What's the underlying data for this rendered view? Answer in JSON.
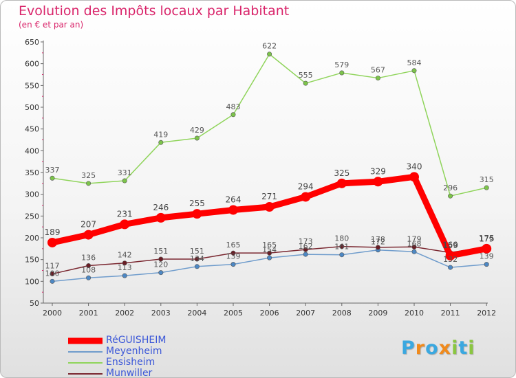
{
  "chart_data": {
    "type": "line",
    "title": "Evolution des Impôts locaux par Habitant",
    "subtitle": "(en € et par an)",
    "x": [
      "2000",
      "2001",
      "2002",
      "2003",
      "2004",
      "2005",
      "2006",
      "2007",
      "2008",
      "2009",
      "2010",
      "2011",
      "2012"
    ],
    "ylim": [
      50,
      650
    ],
    "yticks": [
      "50",
      "100",
      "150",
      "200",
      "250",
      "300",
      "350",
      "400",
      "450",
      "500",
      "550",
      "600",
      "650"
    ],
    "grid": "none",
    "legend_position": "bottom-left",
    "series": [
      {
        "name": "Ensisheim",
        "color": "#8fd45a",
        "point_color": "#7cc44a",
        "values": [
          337,
          325,
          331,
          419,
          429,
          483,
          622,
          555,
          579,
          567,
          584,
          296,
          315
        ],
        "labels": [
          "337",
          "325",
          "331",
          "419",
          "429",
          "483",
          "622",
          "555",
          "579",
          "567",
          "584",
          "296",
          "315"
        ]
      },
      {
        "name": "Meyenheim",
        "color": "#6f9ccc",
        "point_color": "#4d88c4",
        "values": [
          100,
          108,
          113,
          120,
          134,
          139,
          154,
          162,
          161,
          172,
          168,
          132,
          139
        ],
        "labels": [
          "100",
          "108",
          "113",
          "120",
          "134",
          "139",
          "154",
          "162",
          "161",
          "172",
          "168",
          "132",
          "139"
        ]
      },
      {
        "name": "Munwiller",
        "color": "#7a2730",
        "point_color": "#6a1d25",
        "values": [
          117,
          136,
          142,
          151,
          151,
          165,
          165,
          173,
          180,
          178,
          179,
          166,
          179
        ],
        "labels": [
          "117",
          "136",
          "142",
          "151",
          "151",
          "165",
          "165",
          "173",
          "180",
          "178",
          "179",
          "166",
          "179"
        ]
      },
      {
        "name": "RéGUISHEIM",
        "color": "#ff0000",
        "point_color": "#ff0000",
        "values": [
          189,
          207,
          231,
          246,
          255,
          264,
          271,
          294,
          325,
          329,
          340,
          159,
          175
        ],
        "labels": [
          "189",
          "207",
          "231",
          "246",
          "255",
          "264",
          "271",
          "294",
          "325",
          "329",
          "340",
          "159",
          "175"
        ]
      }
    ]
  },
  "legend": {
    "items": [
      {
        "name": "RéGUISHEIM",
        "color": "#ff0000"
      },
      {
        "name": "Meyenheim",
        "color": "#6f9ccc"
      },
      {
        "name": "Ensisheim",
        "color": "#8fd45a"
      },
      {
        "name": "Munwiller",
        "color": "#7a2730"
      }
    ]
  },
  "logo": {
    "text": "Proxiti",
    "letters": [
      {
        "ch": "P",
        "color": "#3aa8e0"
      },
      {
        "ch": "r",
        "color": "#f08a1c"
      },
      {
        "ch": "o",
        "color": "#3aa8e0"
      },
      {
        "ch": "x",
        "color": "#f08a1c"
      },
      {
        "ch": "i",
        "color": "#8ac641"
      },
      {
        "ch": "t",
        "color": "#3aa8e0"
      },
      {
        "ch": "i",
        "color": "#8ac641"
      }
    ]
  }
}
